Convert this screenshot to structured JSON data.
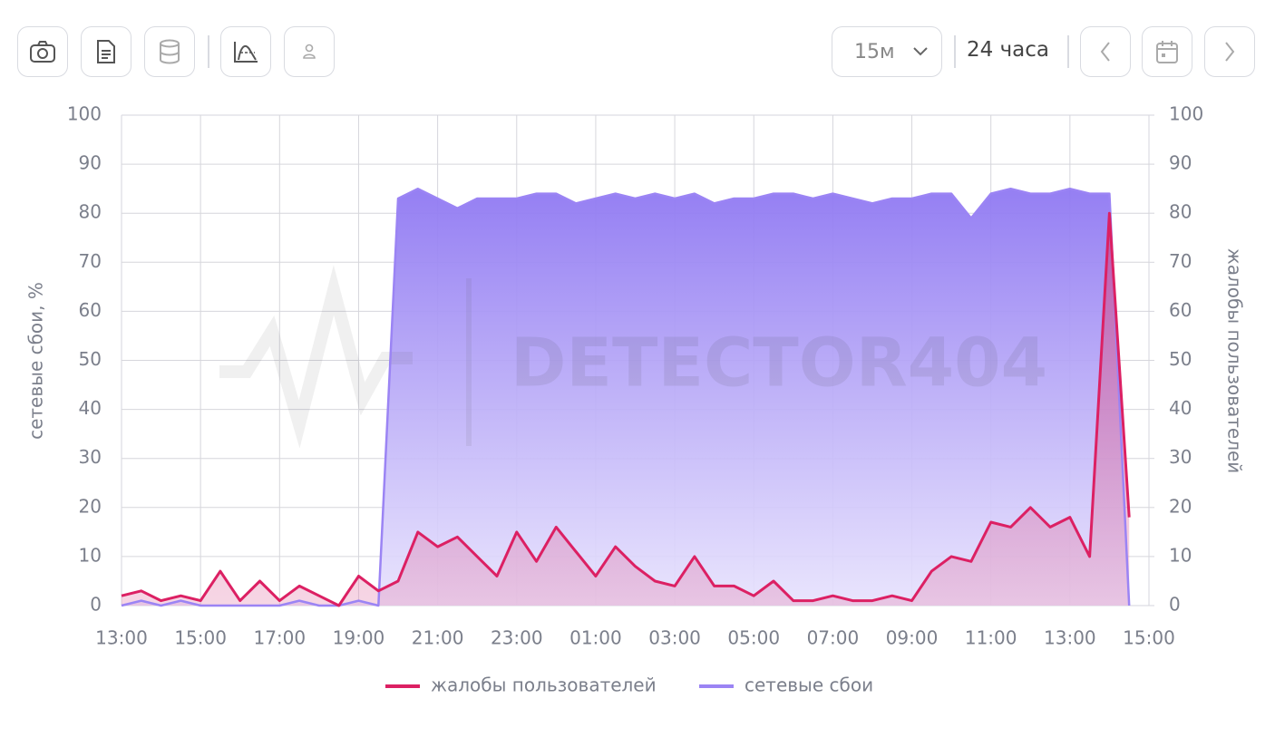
{
  "toolbar": {
    "interval": "15м",
    "range": "24 часа"
  },
  "watermark": "DETECTOR404",
  "chart_data": {
    "type": "line",
    "y_label": "сетевые сбои, %",
    "y2_label": "жалобы пользователей",
    "x": [
      0,
      0.5,
      1,
      1.5,
      2,
      2.5,
      3,
      3.5,
      4,
      4.5,
      5,
      5.5,
      6,
      6.5,
      7,
      7.5,
      8,
      8.5,
      9,
      9.5,
      10,
      10.5,
      11,
      11.5,
      12,
      12.5,
      13,
      13.5,
      14,
      14.5,
      15,
      15.5,
      16,
      16.5,
      17,
      17.5,
      18,
      18.5,
      19,
      19.5,
      20,
      20.5,
      21,
      21.5,
      22,
      22.5,
      23,
      23.5,
      24,
      24.5,
      25,
      25.5
    ],
    "xlim": [
      0,
      26
    ],
    "xticks": [
      {
        "value": 0,
        "label": "13:00"
      },
      {
        "value": 2,
        "label": "15:00"
      },
      {
        "value": 4,
        "label": "17:00"
      },
      {
        "value": 6,
        "label": "19:00"
      },
      {
        "value": 8,
        "label": "21:00"
      },
      {
        "value": 10,
        "label": "23:00"
      },
      {
        "value": 12,
        "label": "01:00"
      },
      {
        "value": 14,
        "label": "03:00"
      },
      {
        "value": 16,
        "label": "05:00"
      },
      {
        "value": 18,
        "label": "07:00"
      },
      {
        "value": 20,
        "label": "09:00"
      },
      {
        "value": 22,
        "label": "11:00"
      },
      {
        "value": 24,
        "label": "13:00"
      },
      {
        "value": 26,
        "label": "15:00"
      }
    ],
    "ylim": [
      0,
      100
    ],
    "yticks": [
      0,
      10,
      20,
      30,
      40,
      50,
      60,
      70,
      80,
      90,
      100
    ],
    "y2lim": [
      0,
      100
    ],
    "y2ticks": [
      0,
      10,
      20,
      30,
      40,
      50,
      60,
      70,
      80,
      90,
      100
    ],
    "grid": true,
    "series": [
      {
        "name": "жалобы пользователей",
        "color": "#dc2063",
        "axis": "y2",
        "values": [
          2,
          3,
          1,
          2,
          1,
          7,
          1,
          5,
          1,
          4,
          2,
          0,
          6,
          3,
          5,
          15,
          12,
          14,
          10,
          6,
          15,
          9,
          16,
          11,
          6,
          12,
          8,
          5,
          4,
          10,
          4,
          4,
          2,
          5,
          1,
          1,
          2,
          1,
          1,
          2,
          1,
          7,
          10,
          9,
          17,
          16,
          20,
          16,
          18,
          10,
          80,
          18
        ]
      },
      {
        "name": "сетевые сбои",
        "color": "#9b84f4",
        "values": [
          0,
          1,
          0,
          1,
          0,
          0,
          0,
          0,
          0,
          1,
          0,
          0,
          1,
          0,
          83,
          85,
          83,
          81,
          83,
          83,
          83,
          84,
          84,
          82,
          83,
          84,
          83,
          84,
          83,
          84,
          82,
          83,
          83,
          84,
          84,
          83,
          84,
          83,
          82,
          83,
          83,
          84,
          84,
          79,
          84,
          85,
          84,
          84,
          85,
          84,
          84,
          0
        ]
      }
    ]
  }
}
